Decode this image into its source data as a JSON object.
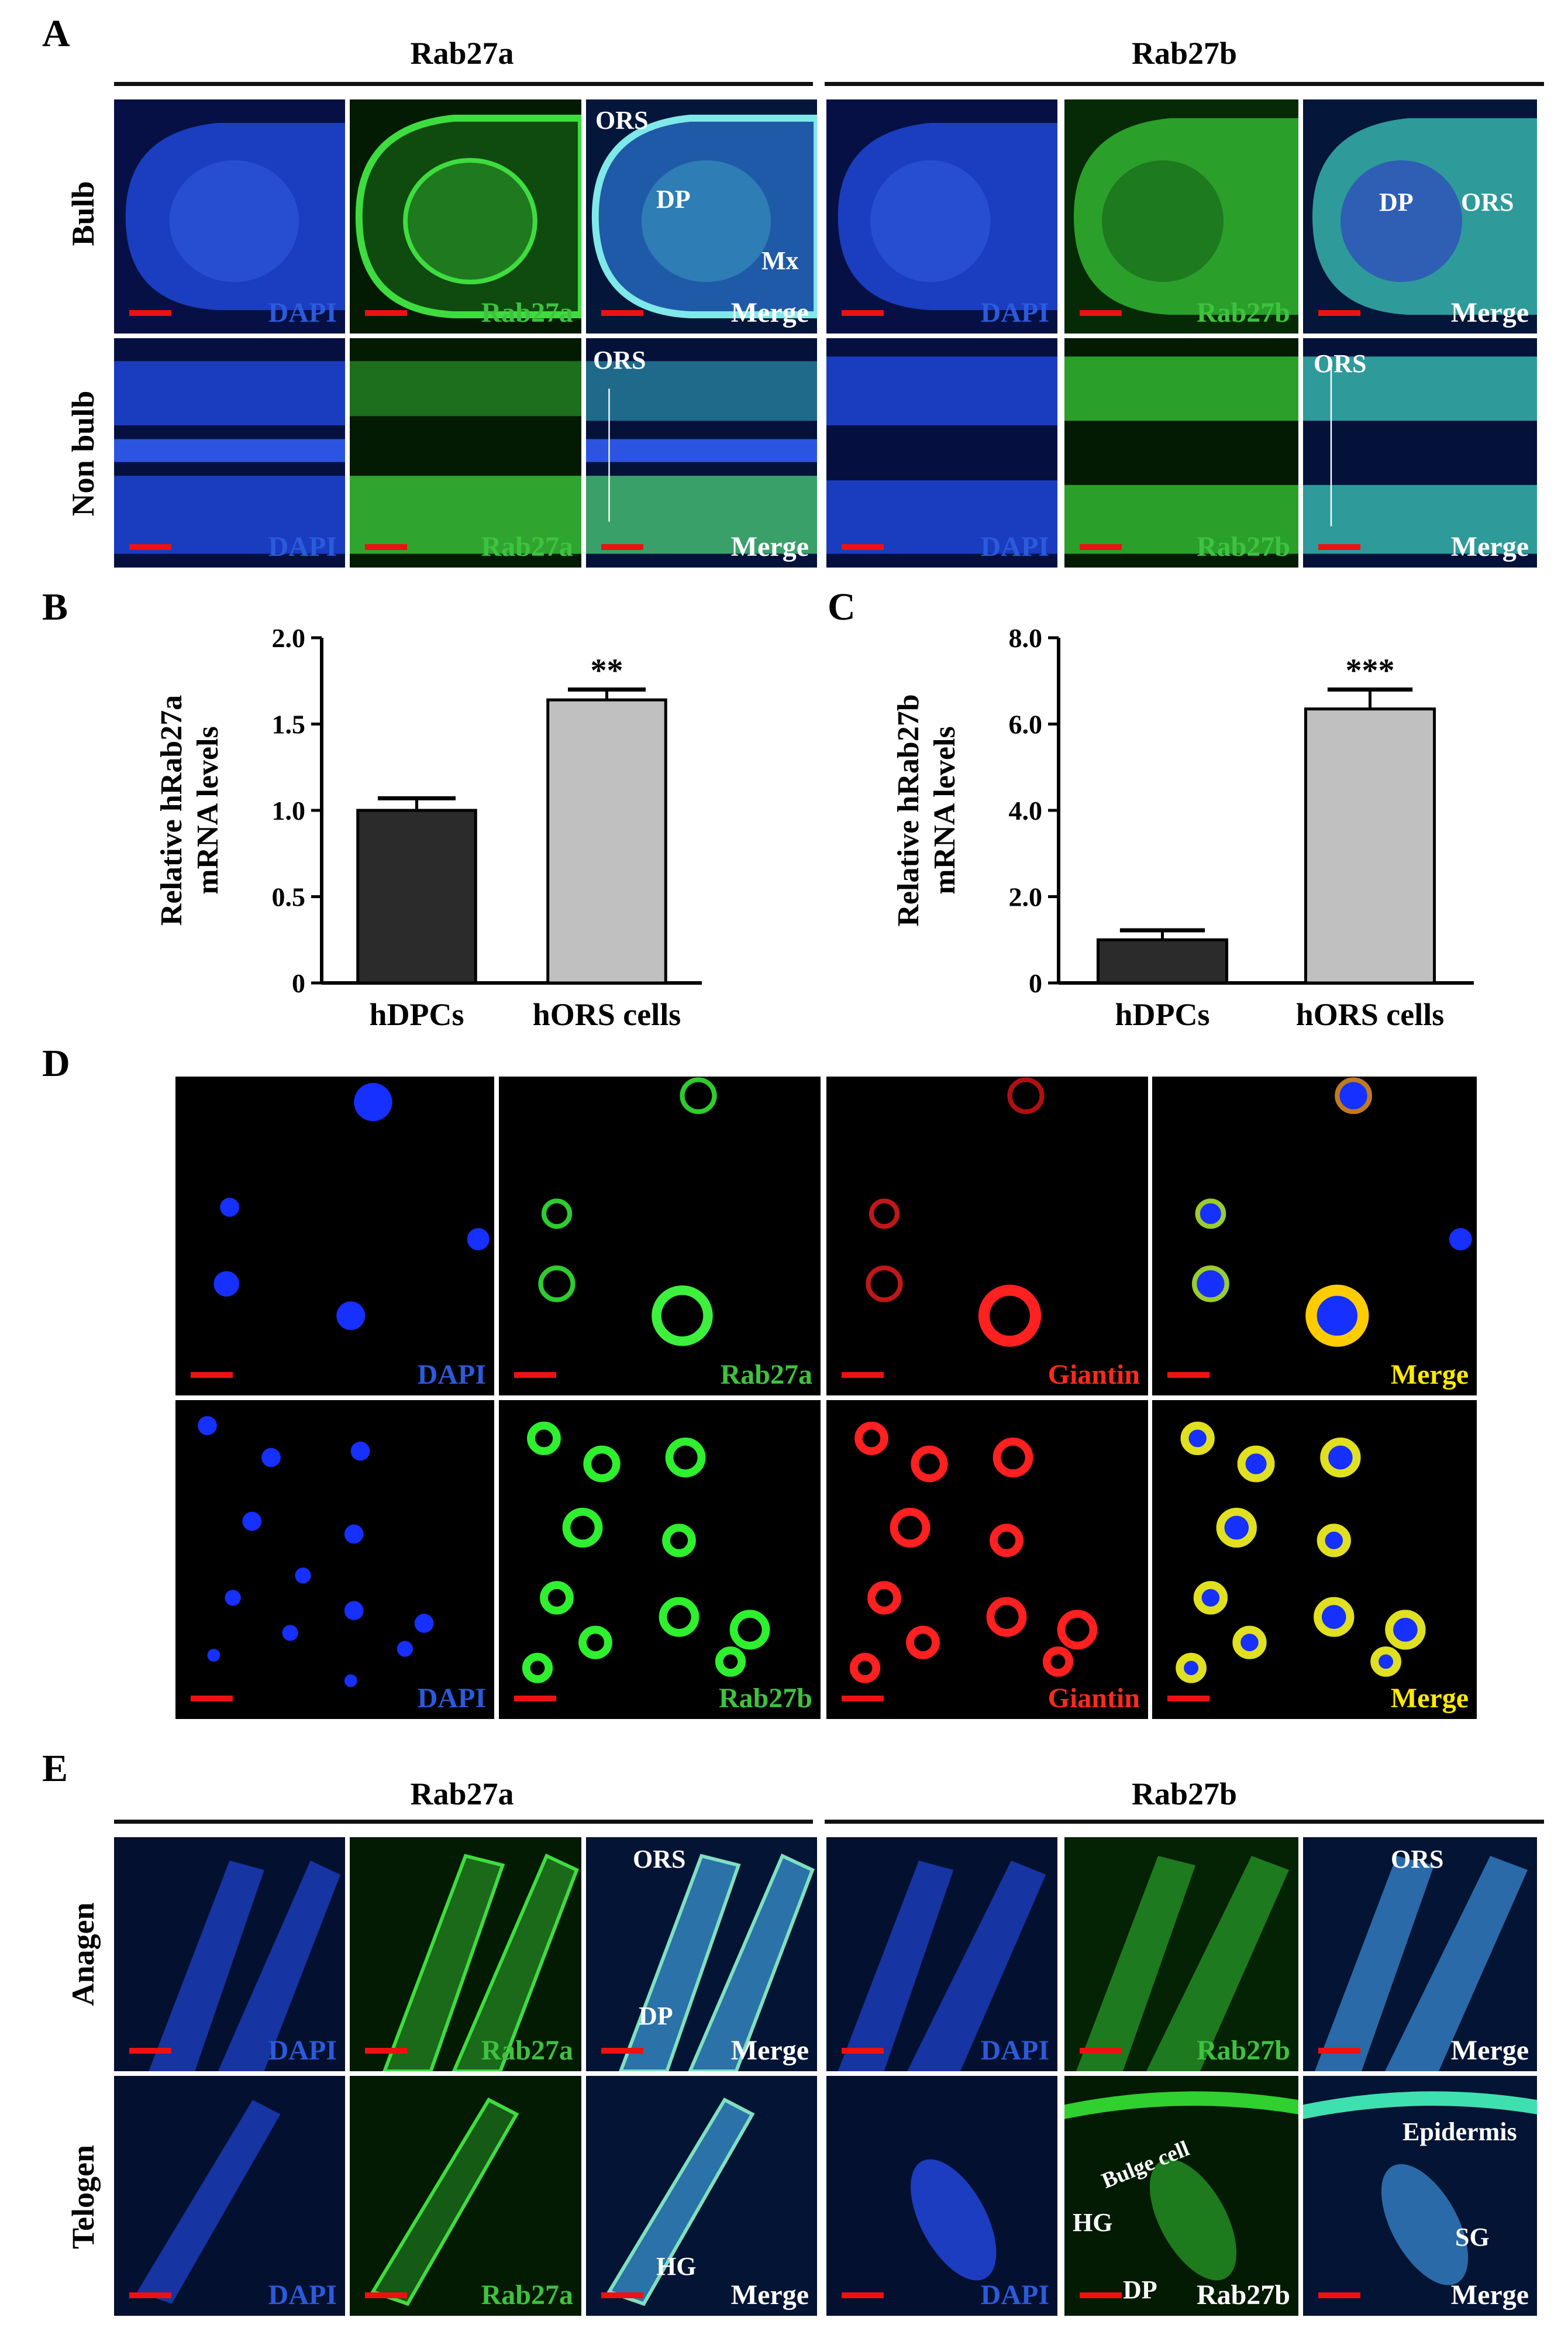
{
  "panels": {
    "A": {
      "label": "A",
      "groups": [
        "Rab27a",
        "Rab27b"
      ],
      "rows": [
        "Bulb",
        "Non bulb"
      ],
      "channels_a": [
        "DAPI",
        "Rab27a",
        "Merge"
      ],
      "channels_b": [
        "DAPI",
        "Rab27b",
        "Merge"
      ],
      "annotations": {
        "ors": "ORS",
        "dp": "DP",
        "mx": "Mx"
      }
    },
    "B": {
      "label": "B"
    },
    "C": {
      "label": "C"
    },
    "D": {
      "label": "D",
      "row1": [
        "DAPI",
        "Rab27a",
        "Giantin",
        "Merge"
      ],
      "row2": [
        "DAPI",
        "Rab27b",
        "Giantin",
        "Merge"
      ]
    },
    "E": {
      "label": "E",
      "groups": [
        "Rab27a",
        "Rab27b"
      ],
      "rows": [
        "Anagen",
        "Telogen"
      ],
      "channels_a": [
        "DAPI",
        "Rab27a",
        "Merge"
      ],
      "channels_b": [
        "DAPI",
        "Rab27b",
        "Merge"
      ],
      "annotations": {
        "ors": "ORS",
        "dp": "DP",
        "hg": "HG",
        "bulge": "Bulge cell",
        "epidermis": "Epidermis",
        "sg": "SG"
      }
    }
  },
  "chart_data": [
    {
      "type": "bar",
      "panel": "B",
      "categories": [
        "hDPCs",
        "hORS cells"
      ],
      "values": [
        1.0,
        1.64
      ],
      "errors": [
        0.07,
        0.06
      ],
      "significance": [
        "",
        "**"
      ],
      "ylabel": [
        "Relative hRab27a",
        "mRNA levels"
      ],
      "ylim": [
        0,
        2.0
      ],
      "yticks": [
        "0",
        "0.5",
        "1.0",
        "1.5",
        "2.0"
      ],
      "colors": [
        "#2b2b2b",
        "#c0c0c0"
      ]
    },
    {
      "type": "bar",
      "panel": "C",
      "categories": [
        "hDPCs",
        "hORS cells"
      ],
      "values": [
        1.0,
        6.35
      ],
      "errors": [
        0.22,
        0.45
      ],
      "significance": [
        "",
        "***"
      ],
      "ylabel": [
        "Relative hRab27b",
        "mRNA levels"
      ],
      "ylim": [
        0,
        8.0
      ],
      "yticks": [
        "0",
        "2.0",
        "4.0",
        "6.0",
        "8.0"
      ],
      "colors": [
        "#2b2b2b",
        "#c0c0c0"
      ]
    }
  ]
}
